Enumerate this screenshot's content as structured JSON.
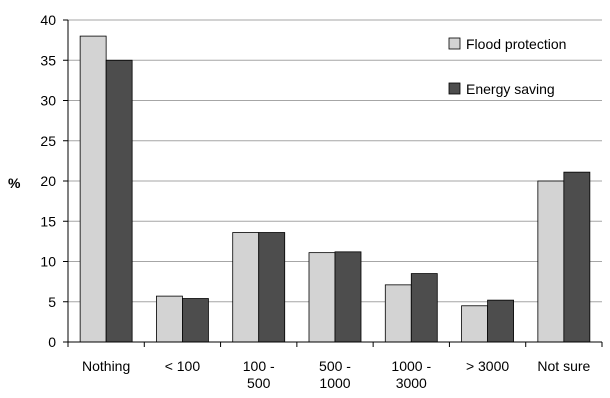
{
  "chart_data": {
    "type": "bar",
    "title": "",
    "xlabel": "",
    "ylabel": "%",
    "ylim": [
      0,
      40
    ],
    "yticks": [
      "0",
      "5",
      "10",
      "15",
      "20",
      "25",
      "30",
      "35",
      "40"
    ],
    "categories": [
      [
        "Nothing"
      ],
      [
        "< 100"
      ],
      [
        "100 -",
        "500"
      ],
      [
        "500 -",
        "1000"
      ],
      [
        "1000 -",
        "3000"
      ],
      [
        "> 3000"
      ],
      [
        "Not sure"
      ]
    ],
    "series": [
      {
        "name": "Flood protection",
        "color": "#d3d3d3",
        "values": [
          38.0,
          5.7,
          13.6,
          11.1,
          7.1,
          4.5,
          20.0
        ]
      },
      {
        "name": "Energy saving",
        "color": "#4d4d4d",
        "values": [
          35.0,
          5.4,
          13.6,
          11.2,
          8.5,
          5.2,
          21.1
        ]
      }
    ],
    "grid": "horizontal",
    "legend_position": "top-right"
  }
}
